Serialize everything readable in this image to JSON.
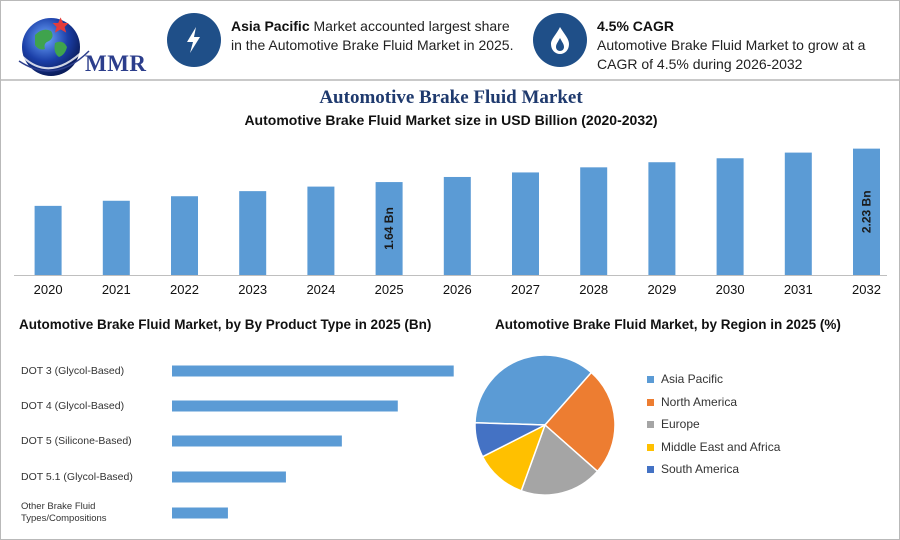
{
  "header": {
    "logo_text": "MMR",
    "highlight_1": {
      "icon": "lightning-bolt-icon",
      "bold": "Asia Pacific",
      "rest": " Market accounted largest share in the Automotive Brake Fluid Market in 2025."
    },
    "highlight_2": {
      "icon": "flame-drop-icon",
      "title": "4.5% CAGR",
      "text": "Automotive Brake Fluid Market to grow at a CAGR of 4.5% during 2026-2032"
    }
  },
  "colors": {
    "bar": "#5b9bd5",
    "dark_blue": "#1f4f88",
    "asia_pacific": "#5b9bd5",
    "north_america": "#ed7d31",
    "europe": "#a5a5a5",
    "middle_east_africa": "#ffc000",
    "south_america": "#4472c4"
  },
  "chart_data": [
    {
      "type": "bar",
      "title": "Automotive Brake Fluid Market",
      "subtitle": "Automotive Brake Fluid Market size in USD Billion (2020-2032)",
      "categories": [
        "2020",
        "2021",
        "2022",
        "2023",
        "2024",
        "2025",
        "2026",
        "2027",
        "2028",
        "2029",
        "2030",
        "2031",
        "2032"
      ],
      "values": [
        1.22,
        1.31,
        1.39,
        1.48,
        1.56,
        1.64,
        1.73,
        1.81,
        1.9,
        1.99,
        2.06,
        2.16,
        2.23
      ],
      "data_labels": [
        {
          "category": "2025",
          "label": "1.64 Bn"
        },
        {
          "category": "2032",
          "label": "2.23 Bn"
        }
      ],
      "ylim": [
        0,
        2.4
      ],
      "grid": false
    },
    {
      "type": "bar",
      "orientation": "horizontal",
      "title": "Automotive Brake Fluid Market, by By Product Type in 2025 (Bn)",
      "categories": [
        "DOT 3 (Glycol-Based)",
        "DOT 4 (Glycol-Based)",
        "DOT 5 (Silicone-Based)",
        "DOT 5.1 (Glycol-Based)",
        "Other Brake Fluid Types/Compositions"
      ],
      "values": [
        0.68,
        0.545,
        0.41,
        0.275,
        0.135
      ],
      "xlim": [
        0,
        0.7
      ]
    },
    {
      "type": "pie",
      "title": "Automotive Brake Fluid Market, by Region in 2025 (%)",
      "labels": [
        "Asia Pacific",
        "North America",
        "Europe",
        "Middle East and Africa",
        "South America"
      ],
      "values": [
        36,
        25,
        19,
        12,
        8
      ],
      "legend": "right"
    }
  ]
}
